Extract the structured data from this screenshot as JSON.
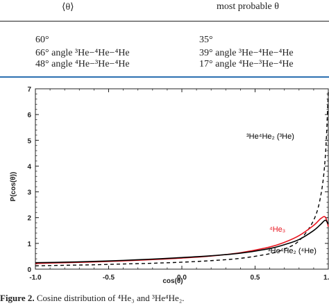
{
  "table": {
    "headers": [
      "⟨θ⟩",
      "most probable θ"
    ],
    "rows": [
      {
        "mean": "60°",
        "mean_label": "",
        "prob": "35°",
        "prob_label": ""
      },
      {
        "mean": "66°",
        "mean_label": "angle ³He−⁴He−⁴He",
        "prob": "39°",
        "prob_label": "angle ³He−⁴He−⁴He"
      },
      {
        "mean": "48°",
        "mean_label": "angle ⁴He−³He−⁴He",
        "prob": "17°",
        "prob_label": "angle ⁴He−³He−⁴He"
      }
    ]
  },
  "chart_data": {
    "type": "line",
    "xlabel": "cos(θ)",
    "ylabel": "P(cos(θ))",
    "xlim": [
      -1.0,
      1.0
    ],
    "ylim": [
      0,
      7
    ],
    "xticks": [
      "-1.0",
      "-0.5",
      "0.0",
      "0.5",
      "1.0"
    ],
    "yticks": [
      "0",
      "1",
      "2",
      "3",
      "4",
      "5",
      "6",
      "7"
    ],
    "series": [
      {
        "name": "³He⁴He₂ (³He)",
        "color": "#000000",
        "style": "dashed",
        "x": [
          -1.0,
          -0.8,
          -0.6,
          -0.4,
          -0.2,
          0.0,
          0.2,
          0.4,
          0.6,
          0.7,
          0.8,
          0.9,
          0.95,
          0.98,
          1.0
        ],
        "y": [
          0.13,
          0.15,
          0.17,
          0.2,
          0.23,
          0.27,
          0.33,
          0.42,
          0.6,
          0.78,
          1.1,
          1.9,
          2.9,
          4.4,
          6.9
        ]
      },
      {
        "name": "⁴He₃",
        "color": "#e8141e",
        "style": "solid",
        "x": [
          -1.0,
          -0.8,
          -0.6,
          -0.4,
          -0.2,
          0.0,
          0.2,
          0.4,
          0.6,
          0.7,
          0.8,
          0.9,
          0.95,
          0.98,
          1.0
        ],
        "y": [
          0.22,
          0.25,
          0.28,
          0.32,
          0.37,
          0.43,
          0.51,
          0.64,
          0.86,
          1.04,
          1.3,
          1.7,
          1.97,
          2.02,
          1.65
        ]
      },
      {
        "name": "³He⁴He₂ (⁴He)",
        "color": "#000000",
        "style": "solid",
        "x": [
          -1.0,
          -0.8,
          -0.6,
          -0.4,
          -0.2,
          0.0,
          0.2,
          0.4,
          0.6,
          0.7,
          0.8,
          0.9,
          0.95,
          0.98,
          1.0
        ],
        "y": [
          0.25,
          0.27,
          0.3,
          0.34,
          0.39,
          0.45,
          0.52,
          0.62,
          0.8,
          0.95,
          1.15,
          1.5,
          1.75,
          1.9,
          1.75
        ]
      }
    ],
    "annotations": [
      {
        "text": "³He⁴He₂ (³He)",
        "color": "#000000"
      },
      {
        "text": "⁴He₃",
        "color": "#e8141e"
      },
      {
        "text": "³He⁴He₂ (⁴He)",
        "color": "#000000"
      }
    ]
  },
  "caption": {
    "label": "Figure 2.",
    "text": " Cosine distribution of ⁴He₃ and ³He⁴He₂."
  }
}
